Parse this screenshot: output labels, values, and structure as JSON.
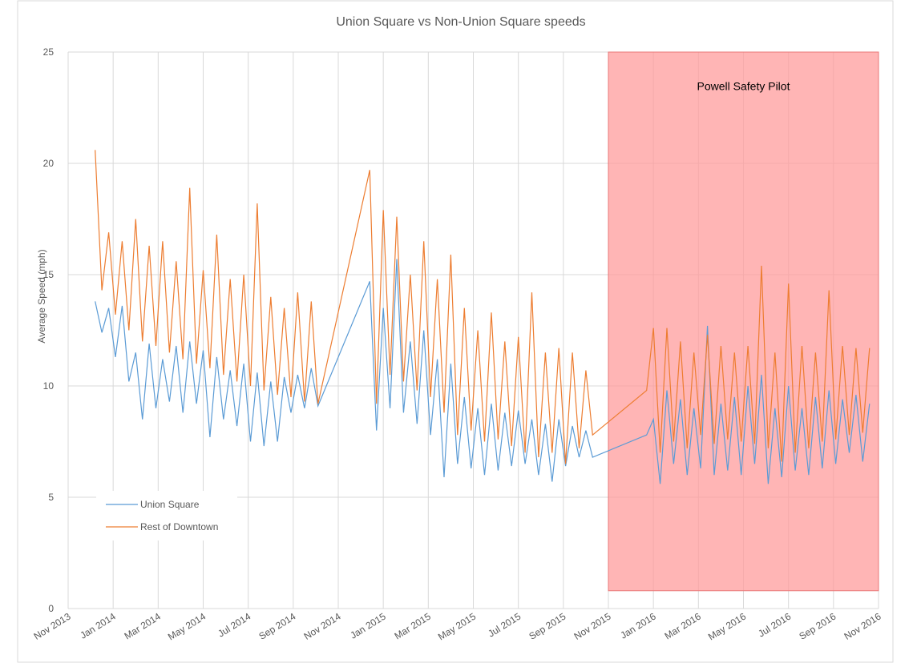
{
  "chart_data": {
    "type": "line",
    "title": "Union Square vs Non-Union Square speeds",
    "y_label": "Average Speed (mph)",
    "xlim": [
      0,
      36
    ],
    "xticks": [
      {
        "value": 0,
        "label": "Nov 2013"
      },
      {
        "value": 2,
        "label": "Jan 2014"
      },
      {
        "value": 4,
        "label": "Mar 2014"
      },
      {
        "value": 6,
        "label": "May 2014"
      },
      {
        "value": 8,
        "label": "Jul 2014"
      },
      {
        "value": 10,
        "label": "Sep 2014"
      },
      {
        "value": 12,
        "label": "Nov 2014"
      },
      {
        "value": 14,
        "label": "Jan 2015"
      },
      {
        "value": 16,
        "label": "Mar 2015"
      },
      {
        "value": 18,
        "label": "May 2015"
      },
      {
        "value": 20,
        "label": "Jul 2015"
      },
      {
        "value": 22,
        "label": "Sep 2015"
      },
      {
        "value": 24,
        "label": "Nov 2015"
      },
      {
        "value": 26,
        "label": "Jan 2016"
      },
      {
        "value": 28,
        "label": "Mar 2016"
      },
      {
        "value": 30,
        "label": "May 2016"
      },
      {
        "value": 32,
        "label": "Jul 2016"
      },
      {
        "value": 34,
        "label": "Sep 2016"
      },
      {
        "value": 36,
        "label": "Nov 2016"
      }
    ],
    "ylim": [
      0,
      25
    ],
    "yticks": [
      0,
      5,
      10,
      15,
      20,
      25
    ],
    "grid": true,
    "legend": "lower-left",
    "shaded_region": {
      "label": "Powell Safety Pilot",
      "x": [
        24,
        36
      ],
      "y": [
        0.8,
        25
      ],
      "label_at": [
        30,
        23.3
      ],
      "color": "#ff9999"
    },
    "x": [
      1.2,
      1.5,
      1.8,
      2.1,
      2.4,
      2.7,
      3.0,
      3.3,
      3.6,
      3.9,
      4.2,
      4.5,
      4.8,
      5.1,
      5.4,
      5.7,
      6.0,
      6.3,
      6.6,
      6.9,
      7.2,
      7.5,
      7.8,
      8.1,
      8.4,
      8.7,
      9.0,
      9.3,
      9.6,
      9.9,
      10.2,
      10.5,
      10.8,
      11.1,
      13.4,
      13.7,
      14.0,
      14.3,
      14.6,
      14.9,
      15.2,
      15.5,
      15.8,
      16.1,
      16.4,
      16.7,
      17.0,
      17.3,
      17.6,
      17.9,
      18.2,
      18.5,
      18.8,
      19.1,
      19.4,
      19.7,
      20.0,
      20.3,
      20.6,
      20.9,
      21.2,
      21.5,
      21.8,
      22.1,
      22.4,
      22.7,
      23.0,
      23.3,
      25.7,
      26.0,
      26.3,
      26.6,
      26.9,
      27.2,
      27.5,
      27.8,
      28.1,
      28.4,
      28.7,
      29.0,
      29.3,
      29.6,
      29.9,
      30.2,
      30.5,
      30.8,
      31.1,
      31.4,
      31.7,
      32.0,
      32.3,
      32.6,
      32.9,
      33.2,
      33.5,
      33.8,
      34.1,
      34.4,
      34.7,
      35.0,
      35.3,
      35.6
    ],
    "series": [
      {
        "name": "Union Square",
        "color": "#5b9bd5",
        "values": [
          13.8,
          12.4,
          13.5,
          11.3,
          13.6,
          10.2,
          11.5,
          8.5,
          11.9,
          9.0,
          11.2,
          9.3,
          11.8,
          8.8,
          12.0,
          9.2,
          11.6,
          7.7,
          11.3,
          8.5,
          10.7,
          8.2,
          11.0,
          7.5,
          10.6,
          7.3,
          10.2,
          7.5,
          10.4,
          8.8,
          10.5,
          9.0,
          10.8,
          9.1,
          14.7,
          8.0,
          13.5,
          9.0,
          15.7,
          8.8,
          12.0,
          8.3,
          12.5,
          7.8,
          11.2,
          5.9,
          11.0,
          6.5,
          9.5,
          6.3,
          9.0,
          6.0,
          9.2,
          6.2,
          8.8,
          6.4,
          8.9,
          6.5,
          8.5,
          6.0,
          8.3,
          5.7,
          8.5,
          6.4,
          8.2,
          6.8,
          8.0,
          6.8,
          7.8,
          8.5,
          5.6,
          9.8,
          6.5,
          9.4,
          6.0,
          9.0,
          6.3,
          12.7,
          6.0,
          9.2,
          6.2,
          9.5,
          6.0,
          10.0,
          6.5,
          10.5,
          5.6,
          9.0,
          5.9,
          10.0,
          6.2,
          9.0,
          6.0,
          9.5,
          6.3,
          9.8,
          6.5,
          9.4,
          7.0,
          9.6,
          6.6,
          9.2
        ]
      },
      {
        "name": "Rest of Downtown",
        "color": "#ed7d31",
        "values": [
          20.6,
          14.3,
          16.9,
          13.2,
          16.5,
          12.5,
          17.5,
          12.0,
          16.3,
          11.8,
          16.5,
          11.5,
          15.6,
          11.2,
          18.9,
          11.0,
          15.2,
          10.8,
          16.8,
          10.5,
          14.8,
          10.2,
          15.0,
          10.0,
          18.2,
          9.8,
          14.0,
          9.6,
          13.5,
          9.5,
          14.2,
          9.3,
          13.8,
          9.2,
          19.7,
          9.2,
          17.9,
          10.5,
          17.6,
          10.2,
          15.0,
          9.8,
          16.5,
          9.5,
          14.8,
          8.8,
          15.9,
          7.8,
          13.5,
          8.0,
          12.5,
          7.5,
          13.3,
          7.6,
          12.0,
          7.3,
          12.2,
          7.0,
          14.2,
          6.8,
          11.5,
          7.0,
          11.7,
          6.5,
          11.5,
          7.2,
          10.7,
          7.8,
          9.8,
          12.6,
          7.0,
          12.6,
          7.5,
          12.0,
          7.2,
          11.5,
          7.8,
          12.3,
          7.4,
          11.8,
          7.6,
          11.5,
          7.5,
          11.8,
          7.4,
          15.4,
          7.2,
          11.5,
          6.6,
          14.6,
          7.0,
          11.8,
          7.2,
          11.5,
          7.5,
          14.3,
          7.6,
          11.8,
          7.8,
          11.7,
          7.9,
          11.7
        ]
      }
    ]
  }
}
